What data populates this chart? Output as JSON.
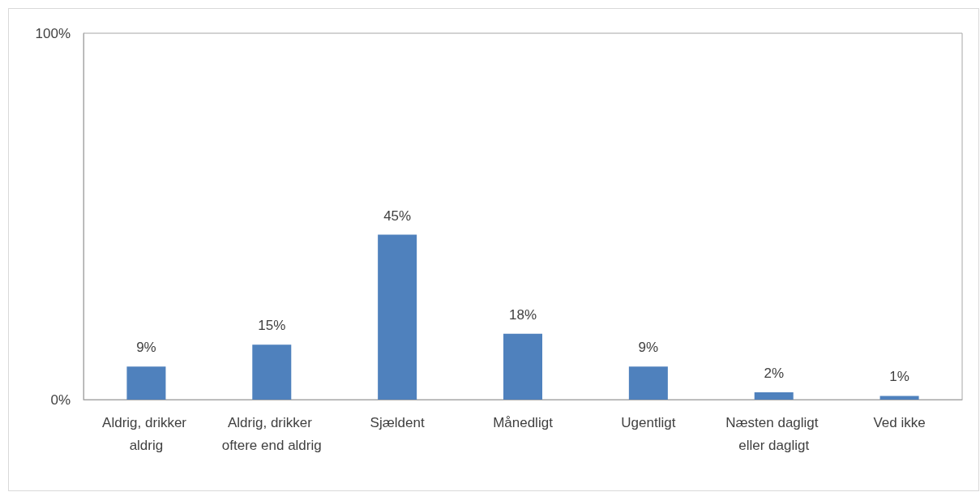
{
  "chart_data": {
    "type": "bar",
    "categories": [
      "Aldrig, drikker aldrig",
      "Aldrig, drikker oftere end aldrig",
      "Sjældent",
      "Månedligt",
      "Ugentligt",
      "Næsten dagligt eller dagligt",
      "Ved ikke"
    ],
    "values": [
      9,
      15,
      45,
      18,
      9,
      2,
      1
    ],
    "color": "#4f81bd",
    "data_labels": true,
    "value_labels": [
      "9%",
      "15%",
      "45%",
      "18%",
      "9%",
      "2%",
      "1%"
    ],
    "ylim": [
      0,
      100
    ],
    "yticks": [
      {
        "value": 0,
        "label": "0%"
      },
      {
        "value": 100,
        "label": "100%"
      }
    ],
    "grid": false
  }
}
